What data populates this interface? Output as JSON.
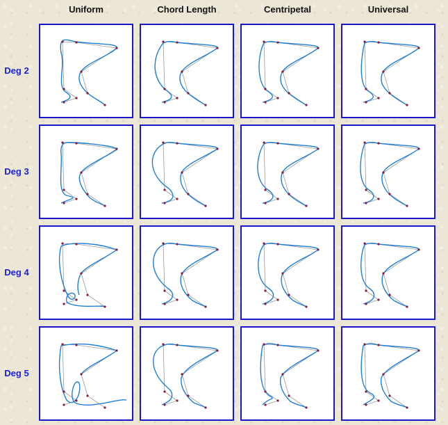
{
  "columns": [
    "Uniform",
    "Chord Length",
    "Centripetal",
    "Universal"
  ],
  "rows": [
    "Deg 2",
    "Deg 3",
    "Deg 4",
    "Deg 5"
  ],
  "colors": {
    "border": "#1a17c8",
    "curve": "#1e7fd6",
    "polygon": "#9a9a9a",
    "point": "#8a1a3a",
    "row_label": "#1e22d6"
  }
}
